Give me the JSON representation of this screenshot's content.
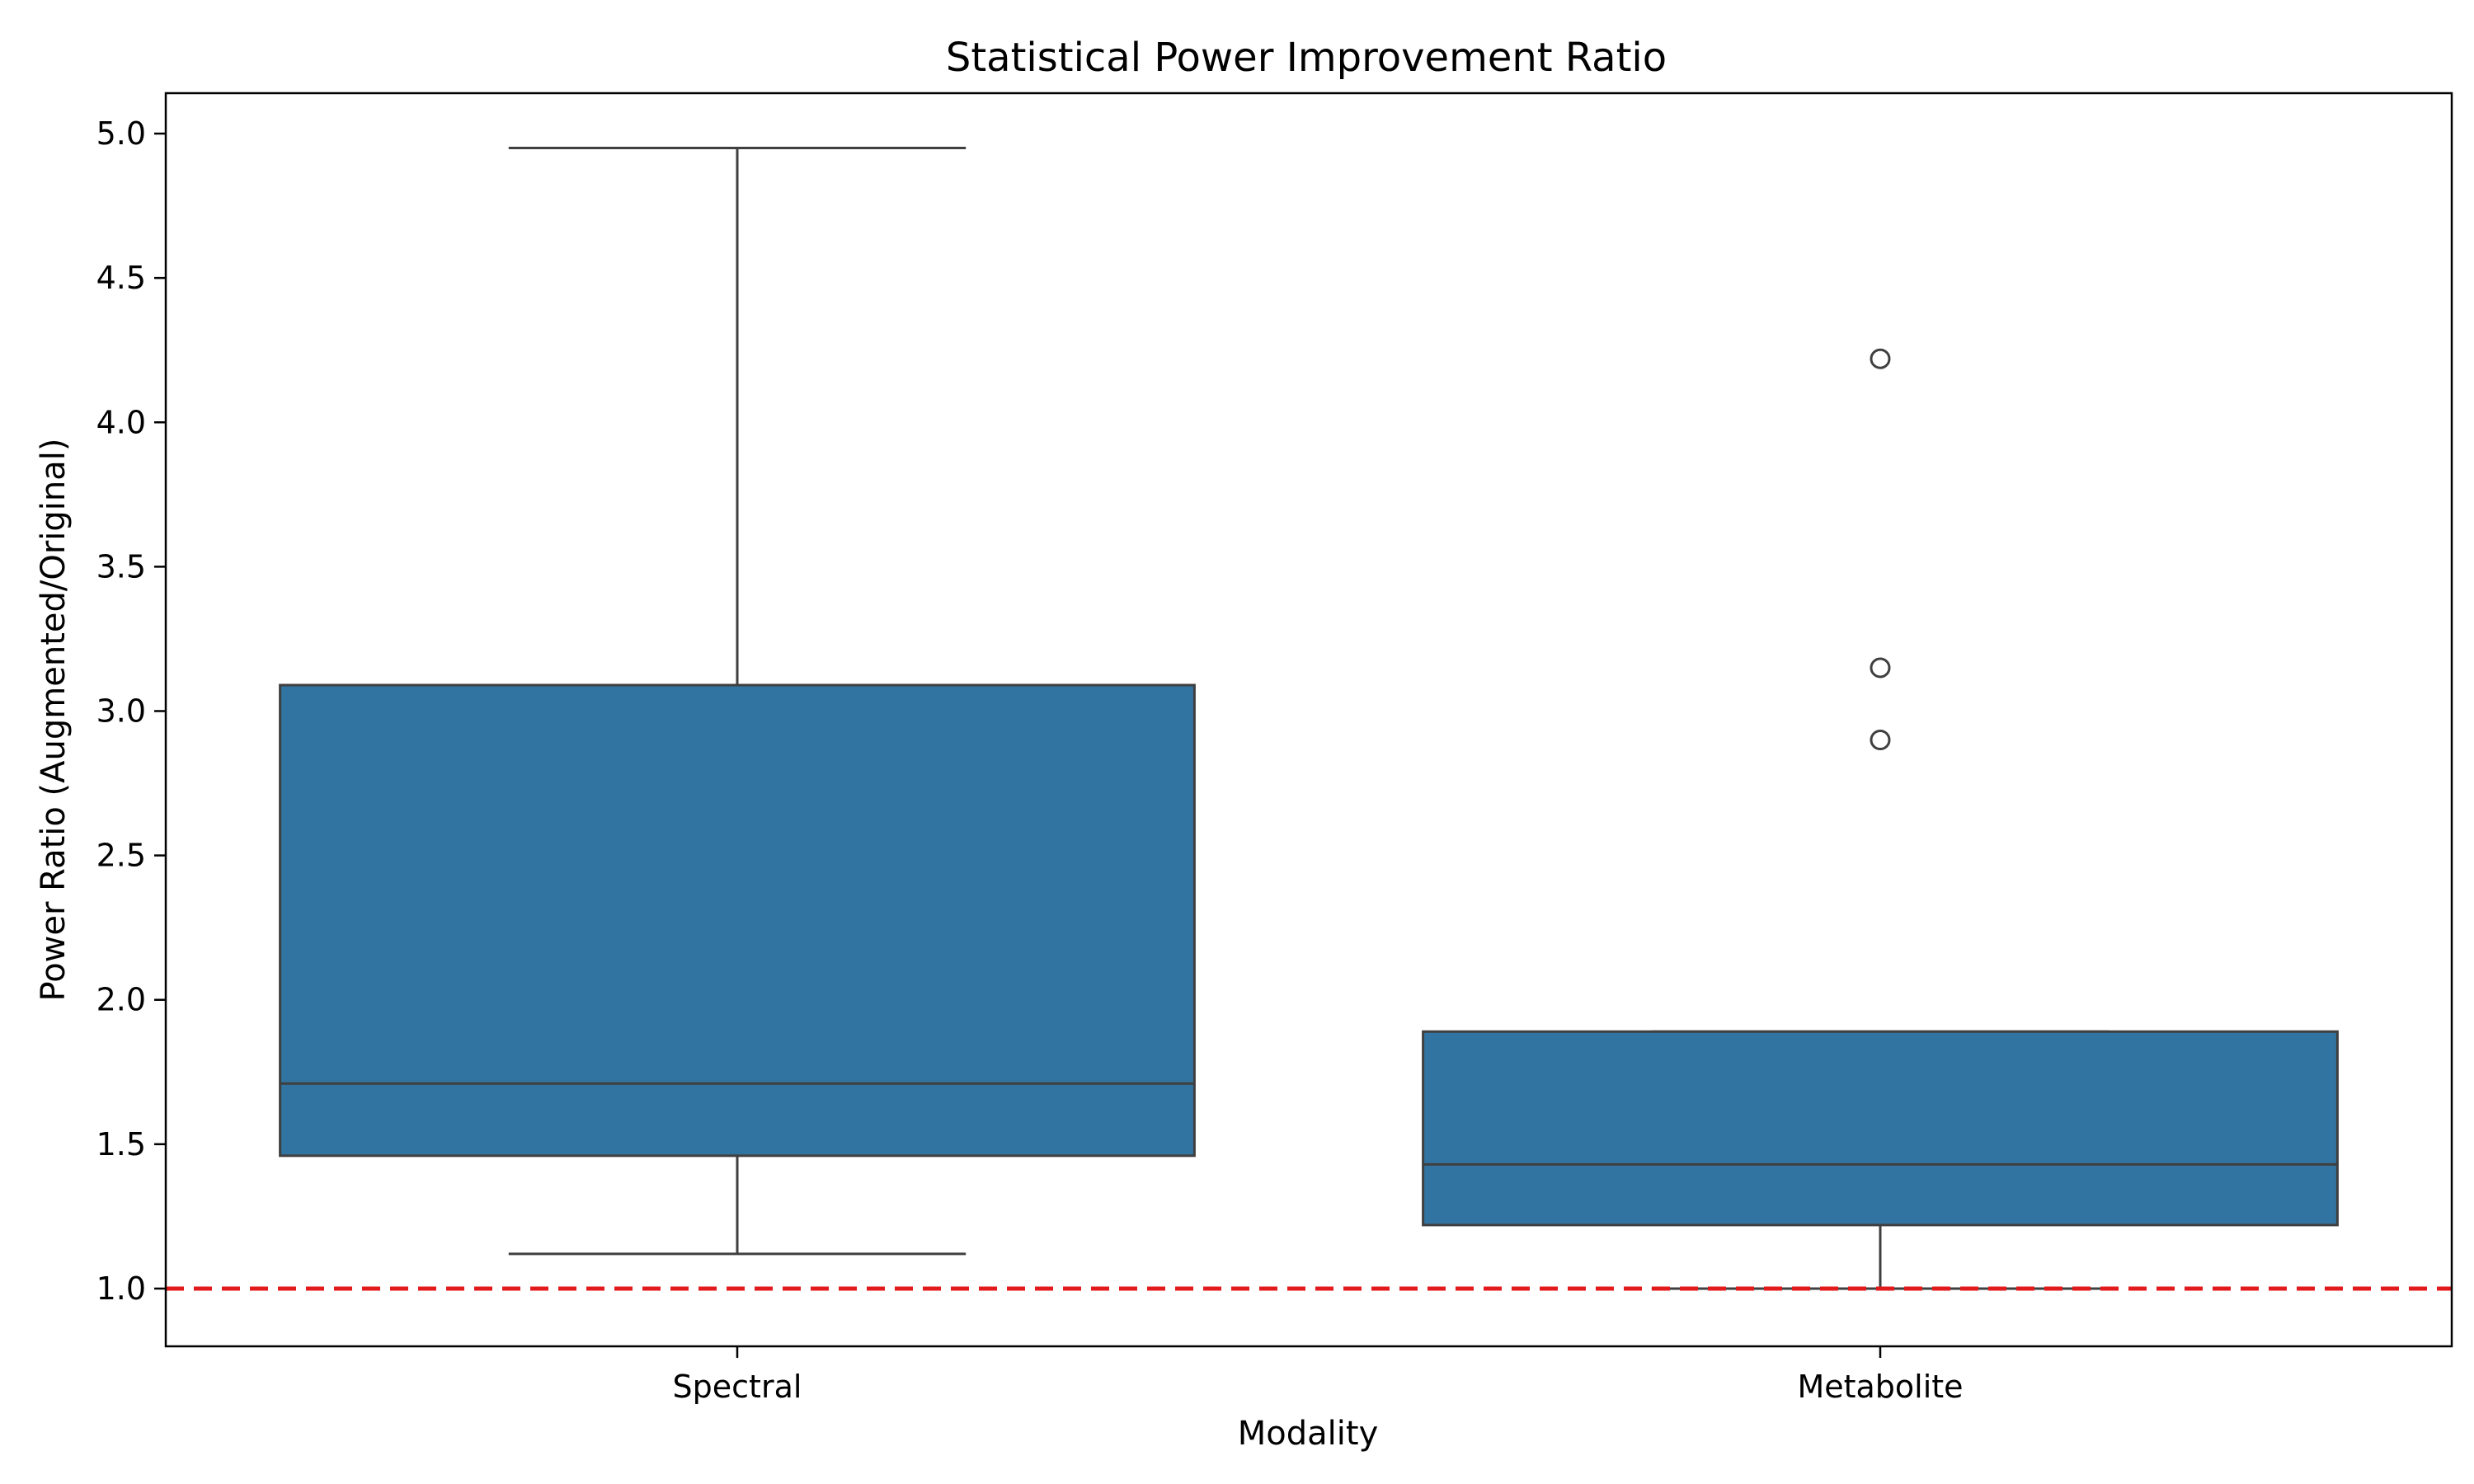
{
  "chart_data": {
    "type": "box",
    "title": "Statistical Power Improvement Ratio",
    "xlabel": "Modality",
    "ylabel": "Power Ratio (Augmented/Original)",
    "ylim": [
      0.8,
      5.14
    ],
    "yticks": [
      1.0,
      1.5,
      2.0,
      2.5,
      3.0,
      3.5,
      4.0,
      4.5,
      5.0
    ],
    "ytick_labels": [
      "1.0",
      "1.5",
      "2.0",
      "2.5",
      "3.0",
      "3.5",
      "4.0",
      "4.5",
      "5.0"
    ],
    "categories": [
      "Spectral",
      "Metabolite"
    ],
    "box_color": "#3274a1",
    "line_color": "#3f3f3f",
    "boxes": [
      {
        "category": "Spectral",
        "whisker_low": 1.12,
        "q1": 1.46,
        "median": 1.71,
        "q3": 3.09,
        "whisker_high": 4.95,
        "outliers": []
      },
      {
        "category": "Metabolite",
        "whisker_low": 1.0,
        "q1": 1.22,
        "median": 1.43,
        "q3": 1.89,
        "whisker_high": 1.89,
        "outliers": [
          4.22,
          3.15,
          2.9
        ]
      }
    ],
    "reference_line": {
      "y": 1.0,
      "color": "#e31a1c",
      "style": "dashed"
    },
    "grid": false,
    "legend": "none"
  }
}
